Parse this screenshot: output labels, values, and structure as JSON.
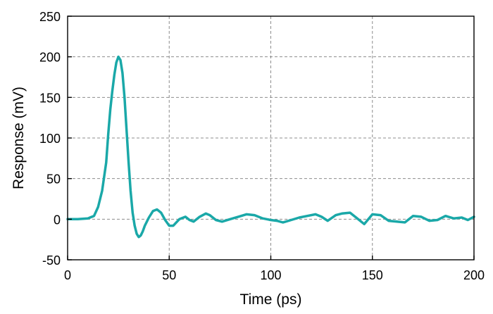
{
  "chart_data": {
    "type": "line",
    "title": "",
    "xlabel": "Time (ps)",
    "ylabel": "Response (mV)",
    "xlim": [
      0,
      200
    ],
    "ylim": [
      -50,
      250
    ],
    "xticks": [
      0,
      50,
      100,
      150,
      200
    ],
    "yticks": [
      -50,
      0,
      50,
      100,
      150,
      200,
      250
    ],
    "grid": true,
    "legend": "none",
    "series": [
      {
        "color": "#1aa8a8",
        "x": [
          0,
          5,
          10,
          13,
          15,
          17,
          19,
          20,
          21,
          22,
          23,
          24,
          25,
          26,
          27,
          28,
          29,
          30,
          31,
          32,
          33,
          34,
          35,
          36,
          37,
          38,
          40,
          42,
          44,
          46,
          48,
          50,
          52,
          55,
          58,
          60,
          62,
          65,
          68,
          70,
          73,
          76,
          80,
          84,
          88,
          92,
          96,
          100,
          103,
          106,
          110,
          114,
          118,
          122,
          125,
          128,
          132,
          135,
          139,
          142,
          146,
          150,
          154,
          158,
          162,
          166,
          170,
          174,
          178,
          182,
          186,
          190,
          194,
          197,
          200
        ],
        "y": [
          0,
          0,
          1,
          4,
          15,
          35,
          70,
          105,
          135,
          158,
          178,
          193,
          200,
          196,
          180,
          150,
          110,
          70,
          35,
          8,
          -8,
          -18,
          -22,
          -20,
          -15,
          -8,
          2,
          10,
          12,
          8,
          -1,
          -8,
          -8,
          0,
          3,
          -1,
          -3,
          3,
          7,
          5,
          -1,
          -3,
          0,
          3,
          6,
          5,
          1,
          -1,
          -2,
          -4,
          -1,
          2,
          4,
          6,
          3,
          -2,
          5,
          7,
          8,
          2,
          -6,
          6,
          5,
          -2,
          -3,
          -4,
          4,
          3,
          -2,
          -1,
          4,
          1,
          2,
          -1,
          3
        ]
      }
    ]
  }
}
